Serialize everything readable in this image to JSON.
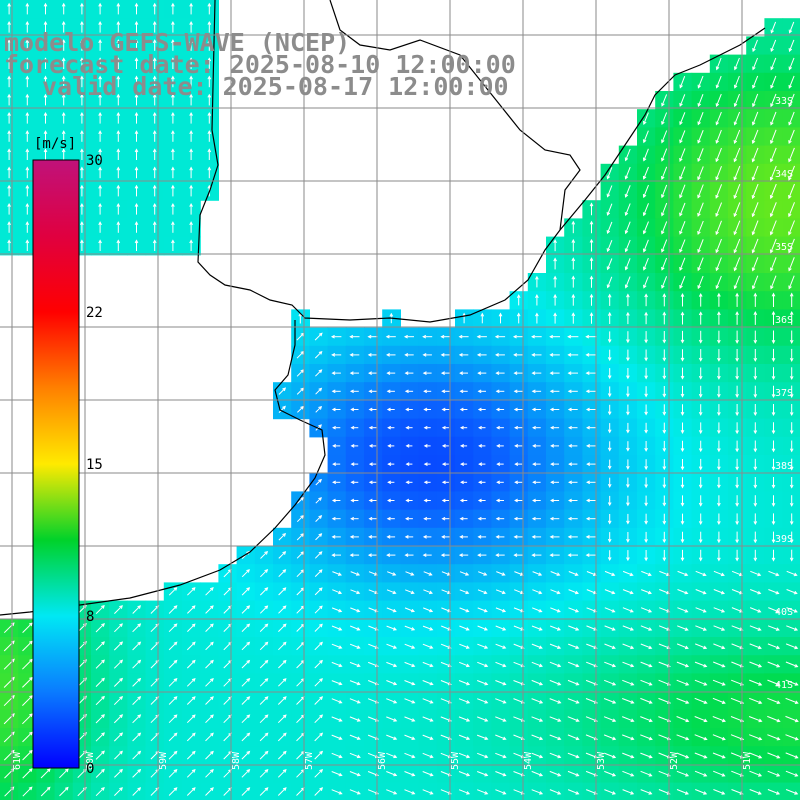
{
  "title": {
    "line1": "modelo GEFS-WAVE (NCEP)",
    "line2": "forecast date: 2025-08-10 12:00:00",
    "line3": "valid date: 2025-08-17 12:00:00"
  },
  "colorbar": {
    "unit": "[m/s]",
    "ticks": [
      "30",
      "22",
      "15",
      "8",
      "0"
    ],
    "min": 0,
    "max": 30,
    "colors": [
      "#0000ff",
      "#0a7bff",
      "#00e8f4",
      "#00d22a",
      "#ffea00",
      "#ff8000",
      "#ff0000",
      "#e00040",
      "#c0127a"
    ]
  },
  "grid": {
    "lat_labels": [
      "33S",
      "34S",
      "35S",
      "36S",
      "37S",
      "38S",
      "39S",
      "40S",
      "41S"
    ],
    "lon_labels": [
      "61W",
      "60W",
      "59W",
      "58W",
      "57W",
      "56W",
      "55W",
      "54W",
      "53W",
      "52W",
      "51W"
    ]
  },
  "colors": {
    "land": "#ffffff",
    "coast": "#000000",
    "grid_line": "#8a8a8a",
    "arrow": "#ffffff"
  }
}
